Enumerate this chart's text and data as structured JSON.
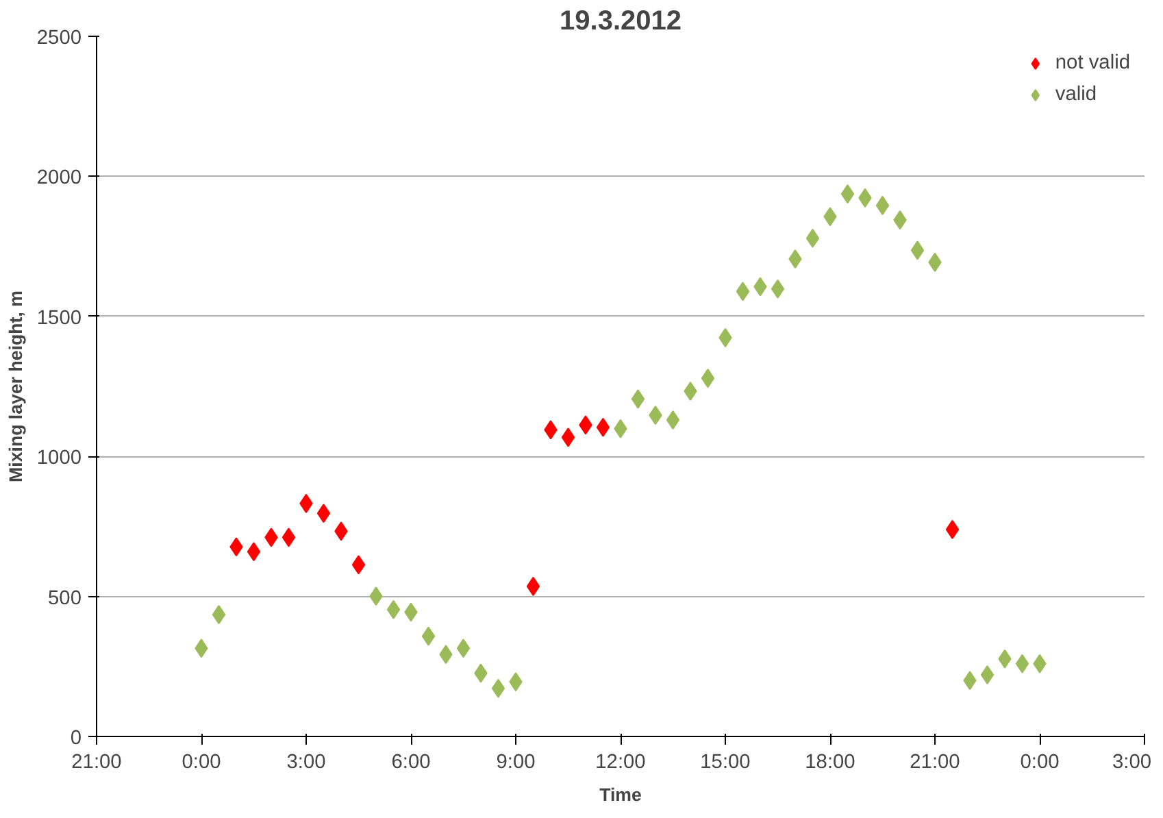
{
  "chart_data": {
    "type": "scatter",
    "title": "19.3.2012",
    "xlabel": "Time",
    "ylabel": "Mixing layer height, m",
    "xlim": [
      "2012-03-18T21:00",
      "2012-03-20T03:00"
    ],
    "xticks": [
      {
        "value": "2012-03-18T21:00",
        "label": "21:00"
      },
      {
        "value": "2012-03-19T00:00",
        "label": "0:00"
      },
      {
        "value": "2012-03-19T03:00",
        "label": "3:00"
      },
      {
        "value": "2012-03-19T06:00",
        "label": "6:00"
      },
      {
        "value": "2012-03-19T09:00",
        "label": "9:00"
      },
      {
        "value": "2012-03-19T12:00",
        "label": "12:00"
      },
      {
        "value": "2012-03-19T15:00",
        "label": "15:00"
      },
      {
        "value": "2012-03-19T18:00",
        "label": "18:00"
      },
      {
        "value": "2012-03-19T21:00",
        "label": "21:00"
      },
      {
        "value": "2012-03-20T00:00",
        "label": "0:00"
      },
      {
        "value": "2012-03-20T03:00",
        "label": "3:00"
      }
    ],
    "ylim": [
      0,
      2500
    ],
    "yticks": [
      0,
      500,
      1000,
      1500,
      2000,
      2500
    ],
    "grid": "y",
    "legend": "top right",
    "marker": "diamond",
    "series": [
      {
        "name": "not valid",
        "color": "#ff0000",
        "x": [
          "2012-03-19T01:00",
          "2012-03-19T01:30",
          "2012-03-19T02:00",
          "2012-03-19T02:30",
          "2012-03-19T03:00",
          "2012-03-19T03:30",
          "2012-03-19T04:00",
          "2012-03-19T04:30",
          "2012-03-19T09:30",
          "2012-03-19T10:00",
          "2012-03-19T10:30",
          "2012-03-19T11:00",
          "2012-03-19T11:30",
          "2012-03-19T21:30"
        ],
        "values": [
          677,
          660,
          711,
          711,
          832,
          797,
          733,
          613,
          536,
          1095,
          1068,
          1112,
          1104,
          739
        ]
      },
      {
        "name": "valid",
        "color": "#9bbb59",
        "x": [
          "2012-03-19T00:00",
          "2012-03-19T00:30",
          "2012-03-19T05:00",
          "2012-03-19T05:30",
          "2012-03-19T06:00",
          "2012-03-19T06:30",
          "2012-03-19T07:00",
          "2012-03-19T07:30",
          "2012-03-19T08:00",
          "2012-03-19T08:30",
          "2012-03-19T09:00",
          "2012-03-19T12:00",
          "2012-03-19T12:30",
          "2012-03-19T13:00",
          "2012-03-19T13:30",
          "2012-03-19T14:00",
          "2012-03-19T14:30",
          "2012-03-19T15:00",
          "2012-03-19T15:30",
          "2012-03-19T16:00",
          "2012-03-19T16:30",
          "2012-03-19T17:00",
          "2012-03-19T17:30",
          "2012-03-19T18:00",
          "2012-03-19T18:30",
          "2012-03-19T19:00",
          "2012-03-19T19:30",
          "2012-03-19T20:00",
          "2012-03-19T20:30",
          "2012-03-19T21:00",
          "2012-03-19T22:00",
          "2012-03-19T22:30",
          "2012-03-19T23:00",
          "2012-03-19T23:30",
          "2012-03-20T00:00"
        ],
        "values": [
          315,
          435,
          501,
          453,
          444,
          358,
          293,
          315,
          226,
          172,
          195,
          1099,
          1205,
          1147,
          1130,
          1233,
          1279,
          1424,
          1589,
          1606,
          1598,
          1705,
          1779,
          1856,
          1937,
          1923,
          1896,
          1844,
          1736,
          1693,
          200,
          220,
          277,
          260,
          260
        ]
      }
    ]
  }
}
